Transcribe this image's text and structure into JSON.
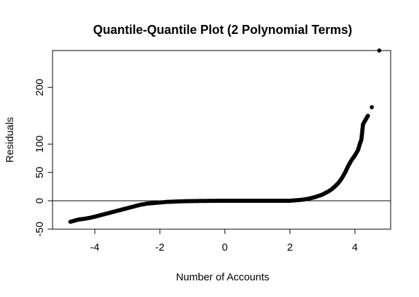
{
  "chart_data": {
    "type": "scatter",
    "title": "Quantile-Quantile Plot (2 Polynomial Terms)",
    "xlabel": "Number of Accounts",
    "ylabel": "Residuals",
    "xlim": [
      -5.3,
      5.1
    ],
    "ylim": [
      -50,
      265
    ],
    "x_ticks": [
      -4,
      -2,
      0,
      2,
      4
    ],
    "y_ticks": [
      -50,
      0,
      50,
      100,
      200
    ],
    "x_tick_labels": [
      "-4",
      "-2",
      "0",
      "2",
      "4"
    ],
    "y_tick_labels": [
      "-50",
      "0",
      "50",
      "100",
      "200"
    ],
    "reference_line_y": 0,
    "point_color": "#000000",
    "grid": false,
    "legend": "none",
    "points": [
      [
        -4.75,
        -37
      ],
      [
        -4.5,
        -33
      ],
      [
        -4.35,
        -32
      ],
      [
        -4.25,
        -31
      ],
      [
        -4.15,
        -30
      ],
      [
        -4.0,
        -28
      ],
      [
        -3.8,
        -25
      ],
      [
        -3.6,
        -22
      ],
      [
        -3.4,
        -19
      ],
      [
        -3.2,
        -16
      ],
      [
        -3.0,
        -13
      ],
      [
        -2.8,
        -10
      ],
      [
        -2.6,
        -7
      ],
      [
        -2.4,
        -5
      ],
      [
        -2.2,
        -4
      ],
      [
        -2.0,
        -3
      ],
      [
        -1.8,
        -2
      ],
      [
        -1.6,
        -1.5
      ],
      [
        -1.4,
        -1
      ],
      [
        -1.2,
        -0.7
      ],
      [
        -1.0,
        -0.5
      ],
      [
        -0.8,
        -0.3
      ],
      [
        -0.6,
        -0.2
      ],
      [
        -0.4,
        -0.1
      ],
      [
        -0.2,
        0
      ],
      [
        0.0,
        0
      ],
      [
        0.2,
        0
      ],
      [
        0.4,
        0
      ],
      [
        0.6,
        0
      ],
      [
        0.8,
        0
      ],
      [
        1.0,
        0
      ],
      [
        1.2,
        0
      ],
      [
        1.4,
        0
      ],
      [
        1.6,
        0
      ],
      [
        1.8,
        0
      ],
      [
        2.0,
        0
      ],
      [
        2.2,
        1
      ],
      [
        2.4,
        2
      ],
      [
        2.6,
        4
      ],
      [
        2.8,
        7
      ],
      [
        3.0,
        11
      ],
      [
        3.2,
        17
      ],
      [
        3.3,
        21
      ],
      [
        3.4,
        26
      ],
      [
        3.5,
        32
      ],
      [
        3.6,
        40
      ],
      [
        3.7,
        50
      ],
      [
        3.8,
        62
      ],
      [
        3.9,
        72
      ],
      [
        4.0,
        80
      ],
      [
        4.1,
        90
      ],
      [
        4.15,
        100
      ],
      [
        4.2,
        108
      ],
      [
        4.25,
        135
      ],
      [
        4.3,
        140
      ],
      [
        4.35,
        145
      ],
      [
        4.4,
        150
      ],
      [
        4.52,
        165
      ],
      [
        4.75,
        265
      ]
    ]
  }
}
